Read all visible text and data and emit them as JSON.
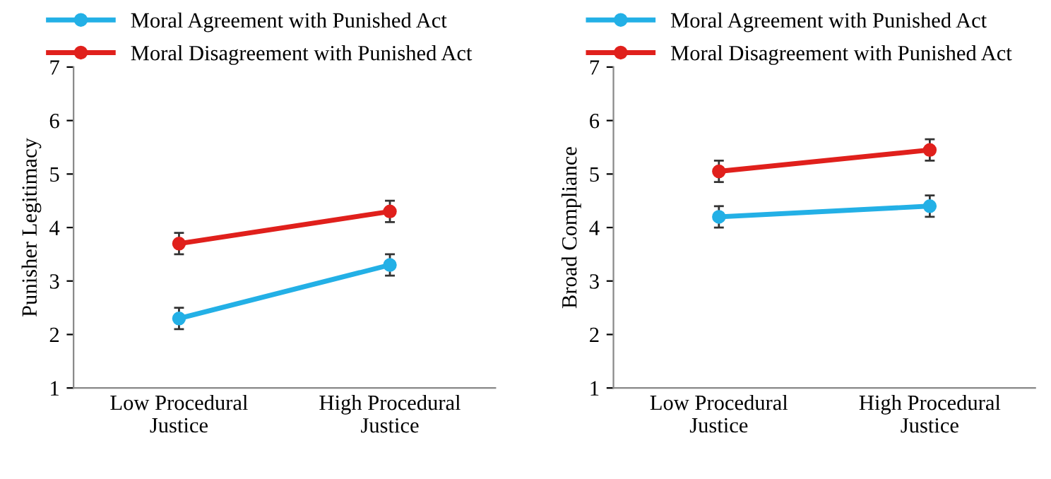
{
  "chart_data": [
    {
      "type": "line",
      "ylabel": "Punisher Legitimacy",
      "categories": [
        "Low Procedural\nJustice",
        "High Procedural\nJustice"
      ],
      "ylim": [
        1,
        7
      ],
      "yticks": [
        1,
        2,
        3,
        4,
        5,
        6,
        7
      ],
      "grid": false,
      "legend": "top",
      "marker": "circle",
      "line_style": "solid",
      "series": [
        {
          "name": "Moral Agreement with Punished Act",
          "color": "#23b0e6",
          "values": [
            2.3,
            3.3
          ],
          "errors": [
            0.2,
            0.2
          ]
        },
        {
          "name": "Moral Disagreement with Punished Act",
          "color": "#e0201c",
          "values": [
            3.7,
            4.3
          ],
          "errors": [
            0.2,
            0.2
          ]
        }
      ]
    },
    {
      "type": "line",
      "ylabel": "Broad Compliance",
      "categories": [
        "Low Procedural\nJustice",
        "High Procedural\nJustice"
      ],
      "ylim": [
        1,
        7
      ],
      "yticks": [
        1,
        2,
        3,
        4,
        5,
        6,
        7
      ],
      "grid": false,
      "legend": "top",
      "marker": "circle",
      "line_style": "solid",
      "series": [
        {
          "name": "Moral Agreement with Punished Act",
          "color": "#23b0e6",
          "values": [
            4.2,
            4.4
          ],
          "errors": [
            0.2,
            0.2
          ]
        },
        {
          "name": "Moral Disagreement with Punished Act",
          "color": "#e0201c",
          "values": [
            5.05,
            5.45
          ],
          "errors": [
            0.2,
            0.2
          ]
        }
      ]
    }
  ]
}
